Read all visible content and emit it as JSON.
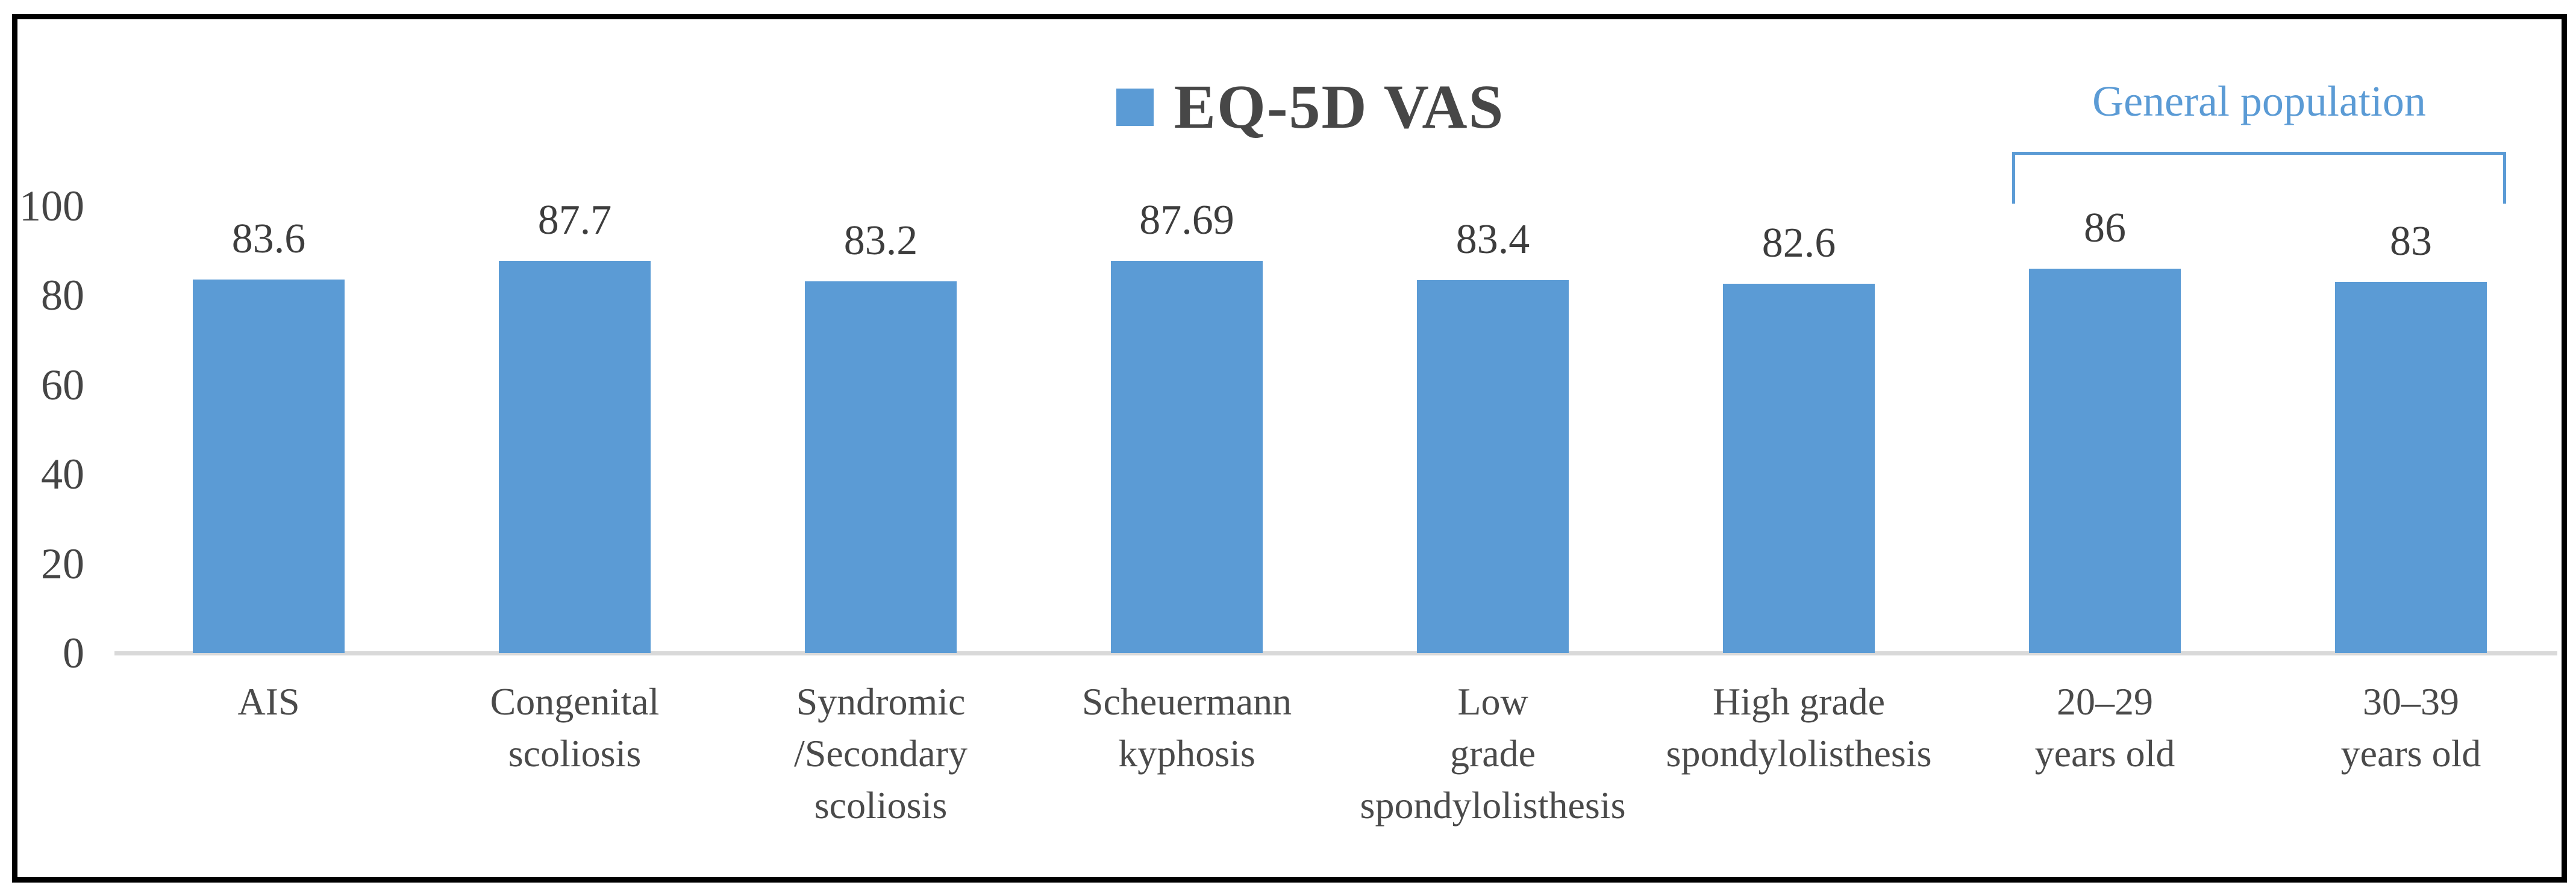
{
  "chart_data": {
    "type": "bar",
    "title": "EQ-5D VAS",
    "legend": {
      "label": "EQ-5D VAS",
      "position": "top-center",
      "swatch_color": "#5B9BD5"
    },
    "categories": [
      "AIS",
      "Congenital\nscoliosis",
      "Syndromic\n/Secondary\nscoliosis",
      "Scheuermann\nkyphosis",
      "Low\ngrade\nspondylolisthesis",
      "High grade\nspondylolisthesis",
      "20–29\nyears old",
      "30–39\nyears old"
    ],
    "values": [
      83.6,
      87.7,
      83.2,
      87.69,
      83.4,
      82.6,
      86,
      83
    ],
    "data_labels": [
      "83.6",
      "87.7",
      "83.2",
      "87.69",
      "83.4",
      "82.6",
      "86",
      "83"
    ],
    "xlabel": "",
    "ylabel": "",
    "y_ticks": [
      0,
      20,
      40,
      60,
      80,
      100
    ],
    "ylim": [
      0,
      100
    ],
    "grid": false,
    "legend_visible": true,
    "bar_color": "#5B9BD5",
    "annotation": {
      "text": "General population",
      "color": "#5B9BD5",
      "covers_categories": [
        "20–29\nyears old",
        "30–39\nyears old"
      ]
    }
  },
  "colors": {
    "accent": "#5B9BD5",
    "title_text": "#474747",
    "value_label_text": "#3d3d3d",
    "axis_text": "#454545",
    "category_text": "#4a4a4a",
    "baseline": "#D9D9D9",
    "frame_border": "#000000",
    "background": "#ffffff"
  }
}
